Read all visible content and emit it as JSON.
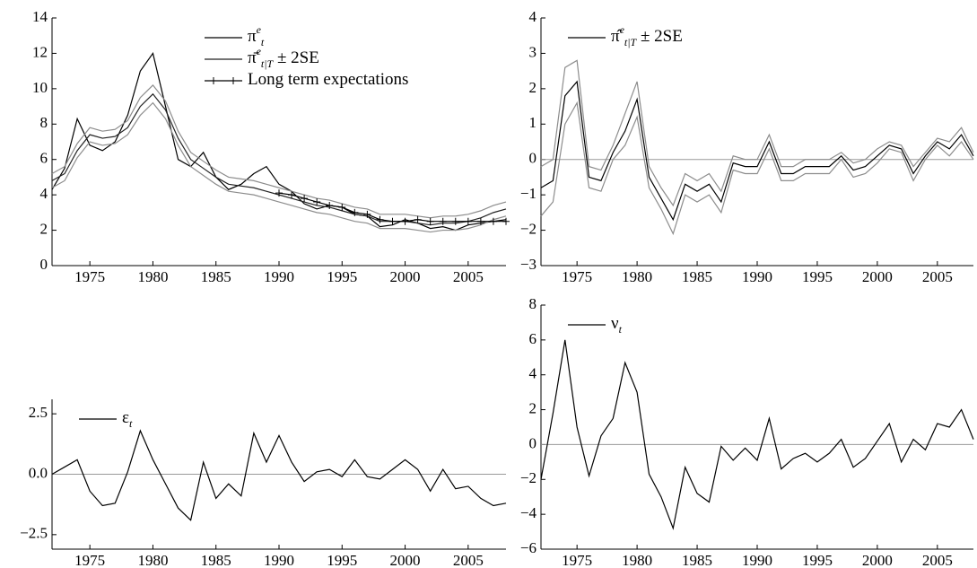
{
  "chart_data": [
    {
      "type": "line",
      "x": [
        1972,
        1973,
        1974,
        1975,
        1976,
        1977,
        1978,
        1979,
        1980,
        1981,
        1982,
        1983,
        1984,
        1985,
        1986,
        1987,
        1988,
        1989,
        1990,
        1991,
        1992,
        1993,
        1994,
        1995,
        1996,
        1997,
        1998,
        1999,
        2000,
        2001,
        2002,
        2003,
        2004,
        2005,
        2006,
        2007,
        2008
      ],
      "xlim": [
        1972,
        2008
      ],
      "xticks": [
        1975,
        1980,
        1985,
        1990,
        1995,
        2000,
        2005
      ],
      "ylim": [
        0,
        14
      ],
      "yticks": [
        0,
        2,
        4,
        6,
        8,
        10,
        12,
        14
      ],
      "series": [
        {
          "name": "π",
          "name_sup": "e",
          "name_sub": "t",
          "color": "#000000",
          "values": [
            4.3,
            5.5,
            8.3,
            6.8,
            6.5,
            7.0,
            8.5,
            11.0,
            12.0,
            9.0,
            6.0,
            5.6,
            6.4,
            5.0,
            4.3,
            4.6,
            5.2,
            5.6,
            4.6,
            4.2,
            3.5,
            3.2,
            3.4,
            3.3,
            2.9,
            2.8,
            2.2,
            2.3,
            2.6,
            2.4,
            2.1,
            2.2,
            2.0,
            2.3,
            2.4,
            2.5,
            2.6
          ]
        },
        {
          "name": "π̄",
          "name_sup": "e",
          "name_sub": "t|T",
          "name_suffix": " ± 2SE",
          "color": "#222222",
          "values": [
            4.8,
            5.2,
            6.5,
            7.4,
            7.2,
            7.3,
            7.8,
            9.0,
            9.7,
            8.8,
            7.2,
            6.0,
            5.5,
            5.0,
            4.6,
            4.5,
            4.4,
            4.2,
            4.0,
            3.8,
            3.6,
            3.4,
            3.3,
            3.1,
            2.9,
            2.8,
            2.5,
            2.5,
            2.5,
            2.4,
            2.3,
            2.4,
            2.4,
            2.5,
            2.7,
            3.0,
            3.2
          ]
        },
        {
          "color": "#8c8c8c",
          "values": [
            5.2,
            5.6,
            6.9,
            7.8,
            7.6,
            7.7,
            8.2,
            9.5,
            10.2,
            9.3,
            7.6,
            6.4,
            5.9,
            5.4,
            5.0,
            4.9,
            4.8,
            4.6,
            4.4,
            4.2,
            4.0,
            3.8,
            3.7,
            3.5,
            3.3,
            3.2,
            2.9,
            2.9,
            2.9,
            2.8,
            2.7,
            2.8,
            2.8,
            2.9,
            3.1,
            3.4,
            3.6
          ]
        },
        {
          "color": "#8c8c8c",
          "values": [
            4.4,
            4.8,
            6.1,
            7.0,
            6.8,
            6.9,
            7.4,
            8.5,
            9.2,
            8.3,
            6.8,
            5.6,
            5.1,
            4.6,
            4.2,
            4.1,
            4.0,
            3.8,
            3.6,
            3.4,
            3.2,
            3.0,
            2.9,
            2.7,
            2.5,
            2.4,
            2.1,
            2.1,
            2.1,
            2.0,
            1.9,
            2.0,
            2.0,
            2.1,
            2.3,
            2.6,
            2.8
          ]
        },
        {
          "name": "Long term expectations",
          "color": "#000000",
          "marker": "+",
          "values": [
            null,
            null,
            null,
            null,
            null,
            null,
            null,
            null,
            null,
            null,
            null,
            null,
            null,
            null,
            null,
            null,
            null,
            null,
            4.1,
            4.0,
            3.8,
            3.6,
            3.4,
            3.3,
            3.0,
            2.9,
            2.6,
            2.5,
            2.5,
            2.6,
            2.5,
            2.5,
            2.5,
            2.5,
            2.5,
            2.5,
            2.5
          ]
        }
      ]
    },
    {
      "type": "line",
      "x": [
        1972,
        1973,
        1974,
        1975,
        1976,
        1977,
        1978,
        1979,
        1980,
        1981,
        1982,
        1983,
        1984,
        1985,
        1986,
        1987,
        1988,
        1989,
        1990,
        1991,
        1992,
        1993,
        1994,
        1995,
        1996,
        1997,
        1998,
        1999,
        2000,
        2001,
        2002,
        2003,
        2004,
        2005,
        2006,
        2007,
        2008
      ],
      "xlim": [
        1972,
        2008
      ],
      "xticks": [
        1975,
        1980,
        1985,
        1990,
        1995,
        2000,
        2005
      ],
      "ylim": [
        -3,
        4
      ],
      "yticks": [
        {
          "value": -3,
          "label": "−3"
        },
        {
          "value": -2,
          "label": "−2"
        },
        {
          "value": -1,
          "label": "−1"
        },
        0,
        1,
        2,
        3,
        4
      ],
      "reference_line": 0,
      "series": [
        {
          "name": "π̂",
          "name_sup": "e",
          "name_sub": "t|T",
          "name_suffix": " ± 2SE",
          "color": "#000000",
          "values": [
            -0.8,
            -0.6,
            1.8,
            2.2,
            -0.5,
            -0.6,
            0.2,
            0.8,
            1.7,
            -0.5,
            -1.1,
            -1.7,
            -0.7,
            -0.9,
            -0.7,
            -1.2,
            -0.1,
            -0.2,
            -0.2,
            0.5,
            -0.4,
            -0.4,
            -0.2,
            -0.2,
            -0.2,
            0.1,
            -0.3,
            -0.2,
            0.1,
            0.4,
            0.3,
            -0.4,
            0.1,
            0.5,
            0.3,
            0.7,
            0.1
          ]
        },
        {
          "color": "#8c8c8c",
          "values": [
            -0.2,
            0,
            2.6,
            2.8,
            -0.2,
            -0.3,
            0.4,
            1.3,
            2.2,
            -0.2,
            -0.8,
            -1.3,
            -0.4,
            -0.6,
            -0.4,
            -0.9,
            0.1,
            0,
            0,
            0.7,
            -0.2,
            -0.2,
            0,
            0,
            0,
            0.2,
            -0.1,
            0,
            0.3,
            0.5,
            0.4,
            -0.2,
            0.2,
            0.6,
            0.5,
            0.9,
            0.2
          ]
        },
        {
          "color": "#8c8c8c",
          "values": [
            -1.6,
            -1.2,
            1.0,
            1.6,
            -0.8,
            -0.9,
            0,
            0.4,
            1.2,
            -0.8,
            -1.4,
            -2.1,
            -1.0,
            -1.2,
            -1.0,
            -1.5,
            -0.3,
            -0.4,
            -0.4,
            0.3,
            -0.6,
            -0.6,
            -0.4,
            -0.4,
            -0.4,
            0,
            -0.5,
            -0.4,
            -0.1,
            0.3,
            0.2,
            -0.6,
            0,
            0.4,
            0.1,
            0.5,
            0
          ]
        }
      ]
    },
    {
      "type": "line",
      "x": [
        1972,
        1973,
        1974,
        1975,
        1976,
        1977,
        1978,
        1979,
        1980,
        1981,
        1982,
        1983,
        1984,
        1985,
        1986,
        1987,
        1988,
        1989,
        1990,
        1991,
        1992,
        1993,
        1994,
        1995,
        1996,
        1997,
        1998,
        1999,
        2000,
        2001,
        2002,
        2003,
        2004,
        2005,
        2006,
        2007,
        2008
      ],
      "xlim": [
        1972,
        2008
      ],
      "xticks": [
        1975,
        1980,
        1985,
        1990,
        1995,
        2000,
        2005
      ],
      "ylim": [
        -3.1,
        3.1
      ],
      "yticks": [
        {
          "value": -2.5,
          "label": "−2.5"
        },
        {
          "value": 0,
          "label": "0.0"
        },
        2.5
      ],
      "reference_line": 0,
      "series": [
        {
          "name": "ε",
          "name_sub": "t",
          "color": "#000000",
          "values": [
            0.0,
            0.3,
            0.6,
            -0.7,
            -1.3,
            -1.2,
            0.1,
            1.8,
            0.6,
            -0.4,
            -1.4,
            -1.9,
            0.5,
            -1.0,
            -0.4,
            -0.9,
            1.7,
            0.5,
            1.6,
            0.5,
            -0.3,
            0.1,
            0.2,
            -0.1,
            0.6,
            -0.1,
            -0.2,
            0.2,
            0.6,
            0.2,
            -0.7,
            0.2,
            -0.6,
            -0.5,
            -1.0,
            -1.3,
            -1.2
          ]
        }
      ]
    },
    {
      "type": "line",
      "x": [
        1972,
        1973,
        1974,
        1975,
        1976,
        1977,
        1978,
        1979,
        1980,
        1981,
        1982,
        1983,
        1984,
        1985,
        1986,
        1987,
        1988,
        1989,
        1990,
        1991,
        1992,
        1993,
        1994,
        1995,
        1996,
        1997,
        1998,
        1999,
        2000,
        2001,
        2002,
        2003,
        2004,
        2005,
        2006,
        2007,
        2008
      ],
      "xlim": [
        1972,
        2008
      ],
      "xticks": [
        1975,
        1980,
        1985,
        1990,
        1995,
        2000,
        2005
      ],
      "ylim": [
        -6,
        8
      ],
      "yticks": [
        {
          "value": -6,
          "label": "−6"
        },
        {
          "value": -4,
          "label": "−4"
        },
        {
          "value": -2,
          "label": "−2"
        },
        0,
        2,
        4,
        6,
        8
      ],
      "reference_line": 0,
      "series": [
        {
          "name": "ν",
          "name_sub": "t",
          "color": "#000000",
          "values": [
            -2,
            1.8,
            6.0,
            1.0,
            -1.8,
            0.5,
            1.5,
            4.7,
            3.0,
            -1.7,
            -3.0,
            -4.8,
            -1.3,
            -2.8,
            -3.3,
            -0.1,
            -0.9,
            -0.2,
            -0.9,
            1.5,
            -1.4,
            -0.8,
            -0.5,
            -1.0,
            -0.5,
            0.3,
            -1.3,
            -0.8,
            0.2,
            1.2,
            -1.0,
            0.3,
            -0.3,
            1.2,
            1.0,
            2.0,
            0.3
          ]
        }
      ]
    }
  ]
}
